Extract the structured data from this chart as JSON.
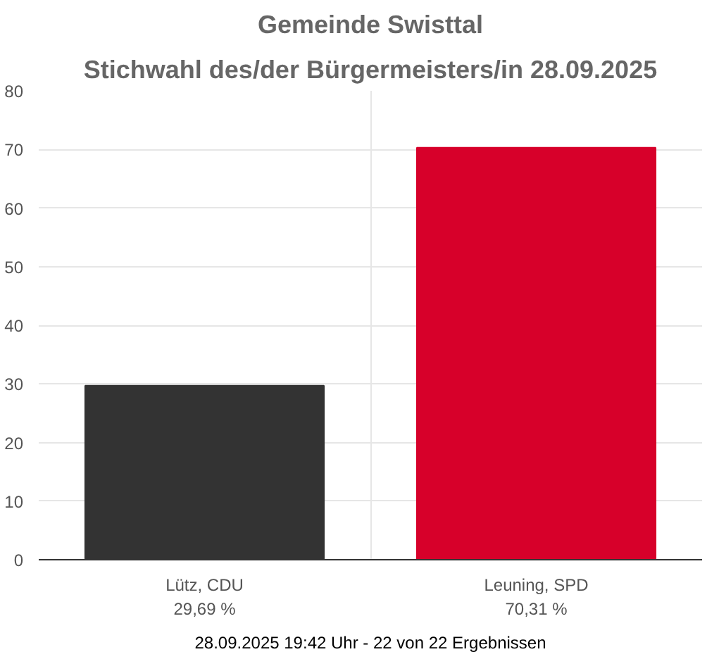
{
  "chart_data": {
    "type": "bar",
    "title": "Gemeinde Swisttal",
    "subtitle": "Stichwahl des/der Bürgermeisters/in 28.09.2025",
    "categories": [
      "Lütz, CDU",
      "Leuning, SPD"
    ],
    "values": [
      29.69,
      70.31
    ],
    "colors": [
      "#333333",
      "#d7002a"
    ],
    "value_labels": [
      "29,69 %",
      "70,31 %"
    ],
    "ylim": [
      0,
      80
    ],
    "yticks": [
      0,
      10,
      20,
      30,
      40,
      50,
      60,
      70,
      80
    ],
    "grid": true,
    "annotations": [
      "28.09.2025 19:42 Uhr - 22 von 22 Ergebnissen"
    ]
  }
}
